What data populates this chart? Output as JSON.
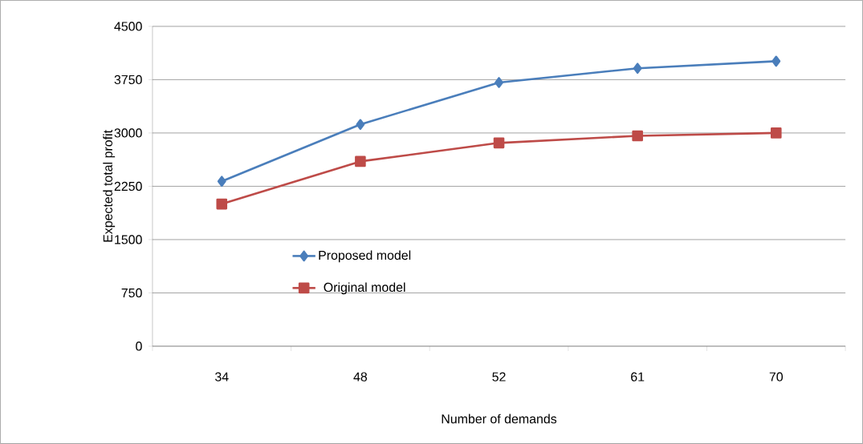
{
  "chart_data": {
    "type": "line",
    "xlabel": "Number of demands",
    "ylabel": "Expected total profit",
    "categories": [
      "34",
      "48",
      "52",
      "61",
      "70"
    ],
    "series": [
      {
        "name": "Proposed model",
        "color": "#4a7ebb",
        "marker": "diamond",
        "values": [
          2320,
          3120,
          3710,
          3910,
          4010
        ]
      },
      {
        "name": "Original model",
        "color": "#be4b48",
        "marker": "square",
        "values": [
          2000,
          2600,
          2860,
          2960,
          3000
        ]
      }
    ],
    "ylim": [
      0,
      4500
    ],
    "yticks": [
      0,
      750,
      1500,
      2250,
      3000,
      3750,
      4500
    ],
    "grid": "y",
    "legend": "left",
    "line_style": "solid"
  }
}
